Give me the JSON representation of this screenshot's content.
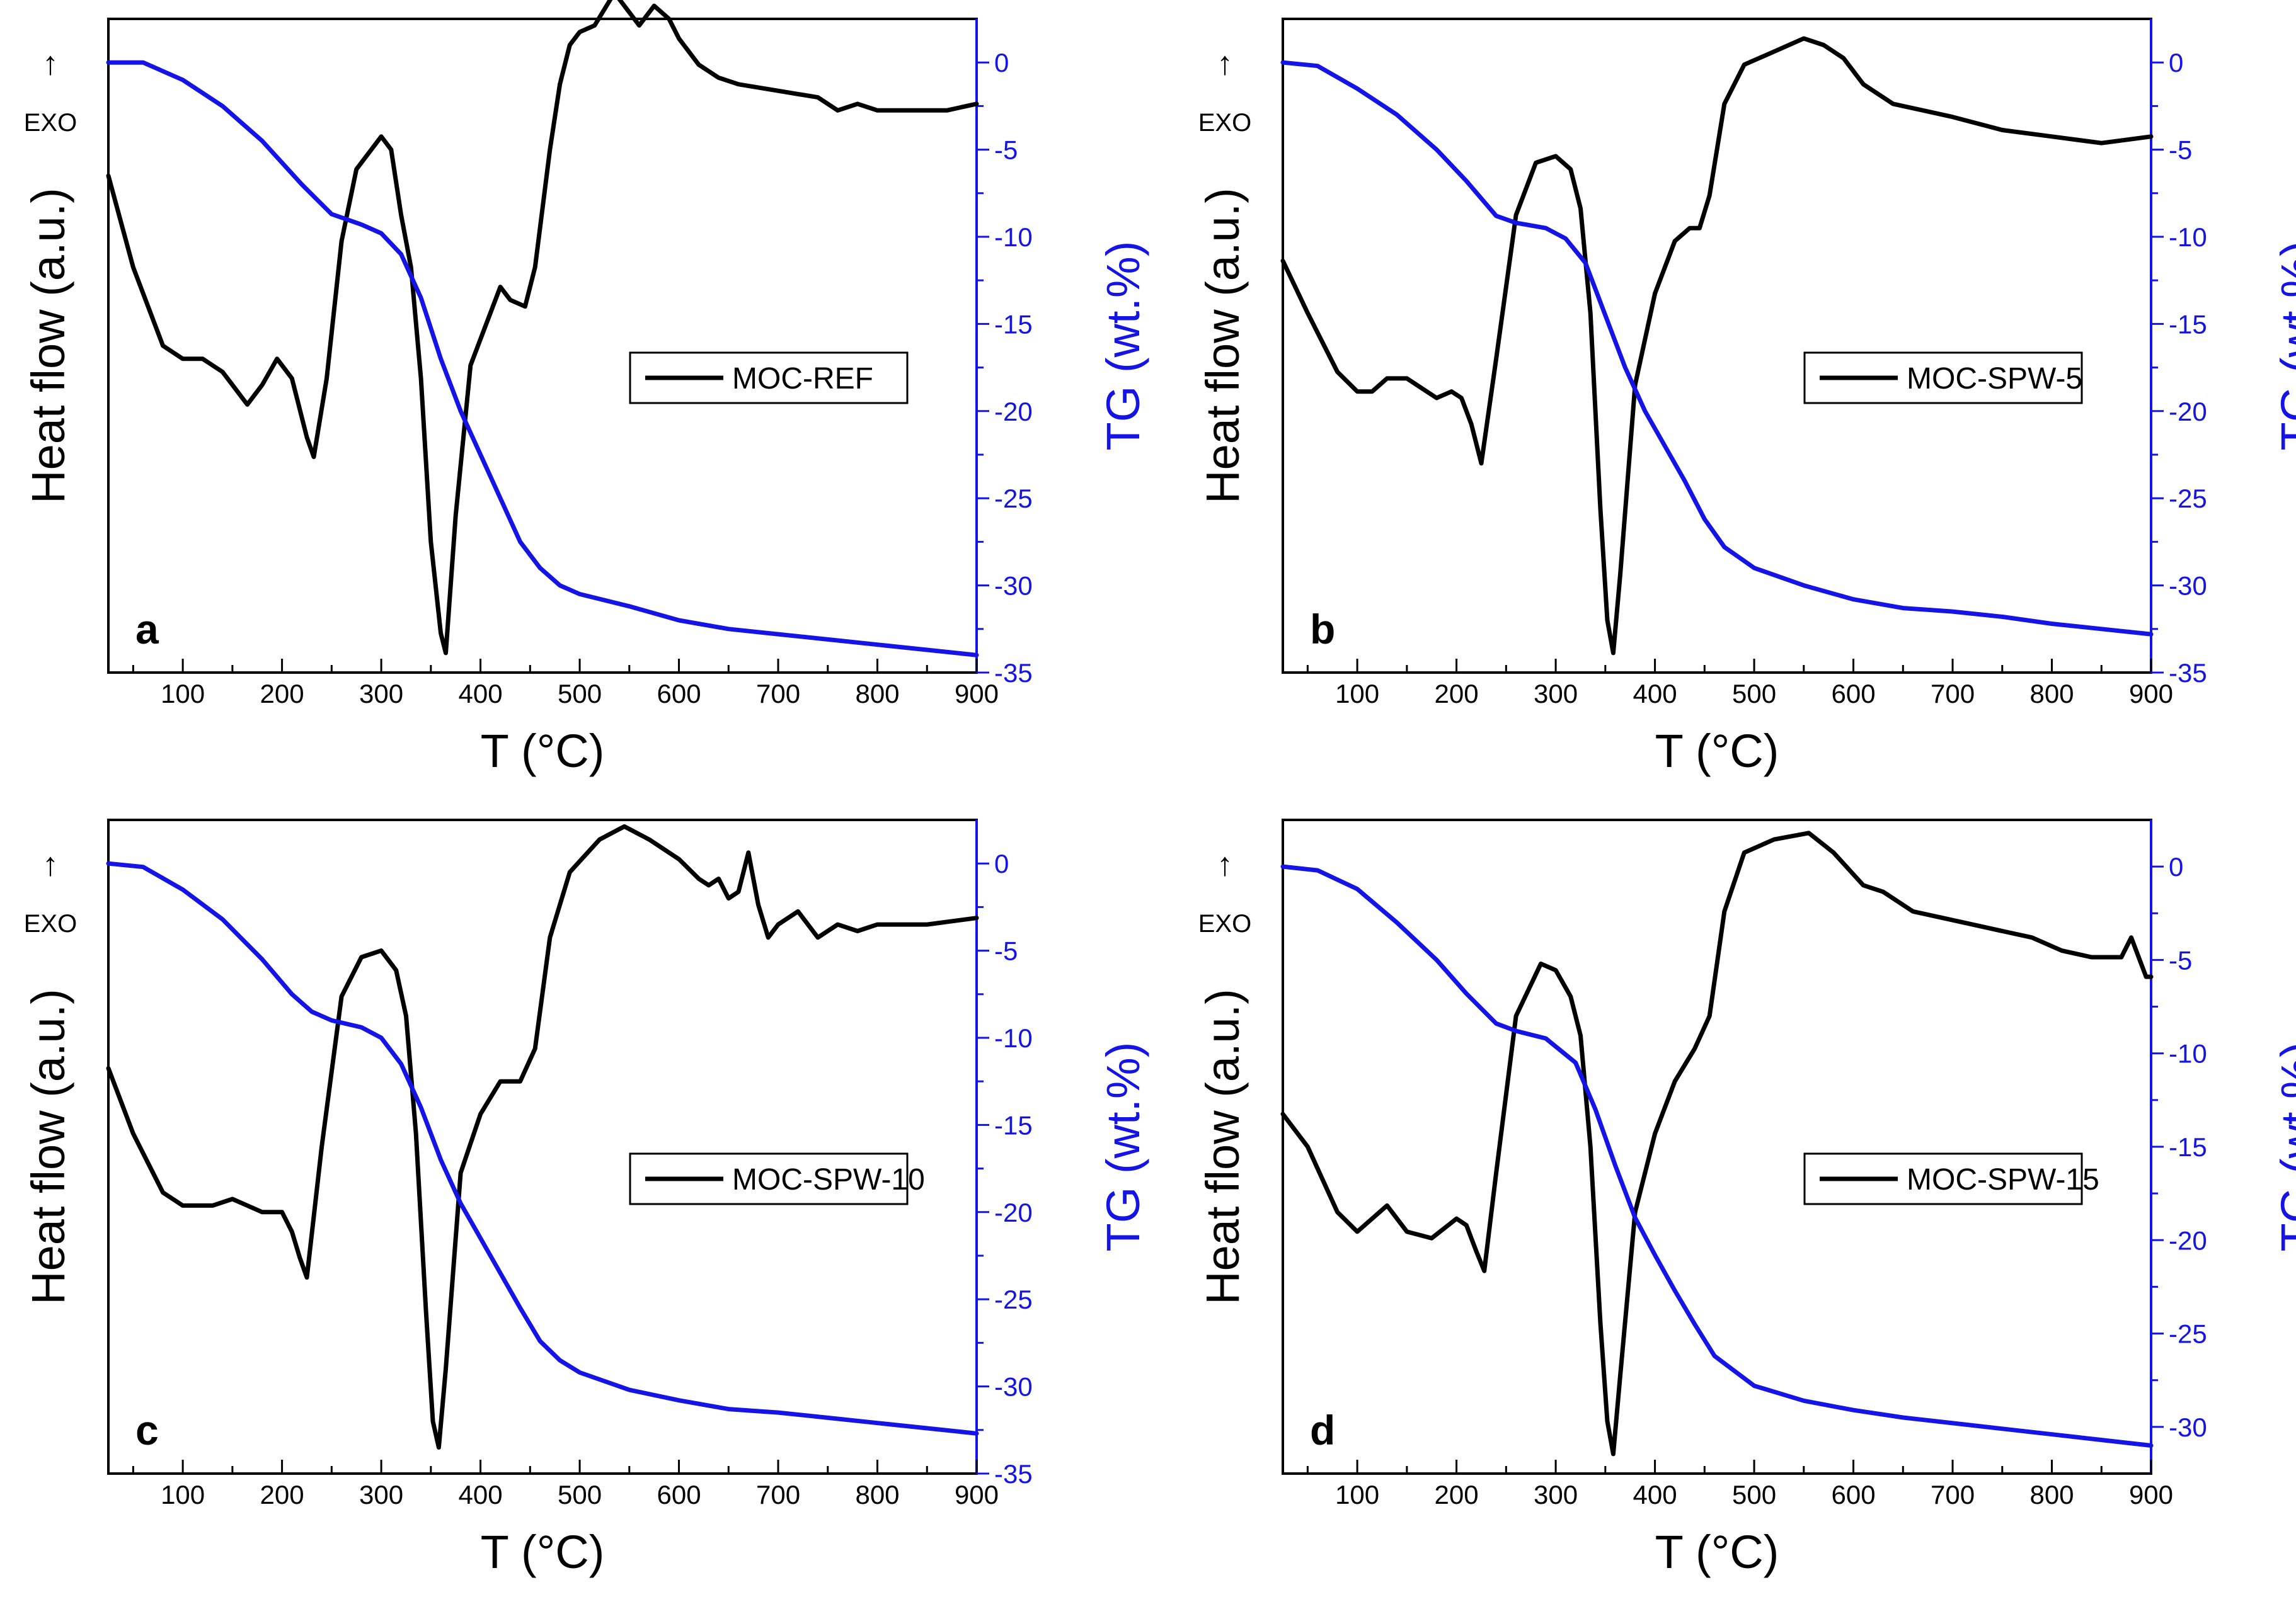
{
  "figure": {
    "x_axis_label": "T (°C)",
    "y_left_label": "Heat flow (a.u.)",
    "y_right_label": "TG (wt.%)",
    "exo_arrow_glyph": "↑",
    "exo_label": "EXO",
    "colors": {
      "dsc": "#000000",
      "tg": "#1414e6",
      "axis_left": "#000000",
      "axis_right": "#1414e6"
    }
  },
  "chart_data": [
    {
      "type": "line",
      "panel_letter": "a",
      "legend": "MOC-REF",
      "legend_position": "center-right",
      "xlabel": "T (°C)",
      "ylabel_left": "Heat flow (a.u.)",
      "ylabel_right": "TG (wt.%)",
      "xlim": [
        25,
        900
      ],
      "x_ticks": [
        100,
        200,
        300,
        400,
        500,
        600,
        700,
        800,
        900
      ],
      "tg_ylim": [
        -35,
        2.5
      ],
      "tg_ticks": [
        0,
        -5,
        -10,
        -15,
        -20,
        -25,
        -30,
        -35
      ],
      "dsc_ylim": [
        0,
        100
      ],
      "series": [
        {
          "name": "MOC-REF",
          "axis": "left",
          "x": [
            25,
            50,
            80,
            100,
            120,
            140,
            150,
            165,
            180,
            195,
            210,
            225,
            232,
            245,
            260,
            275,
            290,
            300,
            310,
            320,
            330,
            340,
            350,
            360,
            365,
            375,
            390,
            410,
            420,
            430,
            445,
            455,
            470,
            480,
            490,
            500,
            515,
            535,
            550,
            560,
            575,
            590,
            600,
            620,
            640,
            660,
            700,
            740,
            760,
            780,
            800,
            840,
            870,
            900
          ],
          "values": [
            76,
            62,
            50,
            48,
            48,
            46,
            44,
            41,
            44,
            48,
            45,
            36,
            33,
            45,
            66,
            77,
            80,
            82,
            80,
            70,
            62,
            45,
            20,
            6,
            3,
            24,
            47,
            55,
            59,
            57,
            56,
            62,
            80,
            90,
            96,
            98,
            99,
            104,
            101,
            99,
            102,
            100,
            97,
            93,
            91,
            90,
            89,
            88,
            86,
            87,
            86,
            86,
            86,
            87
          ]
        },
        {
          "name": "TG",
          "axis": "right",
          "x": [
            25,
            60,
            100,
            140,
            180,
            220,
            250,
            280,
            300,
            320,
            340,
            360,
            380,
            400,
            420,
            440,
            460,
            480,
            500,
            550,
            600,
            650,
            700,
            750,
            800,
            850,
            900
          ],
          "values": [
            0,
            0,
            -1,
            -2.5,
            -4.5,
            -7,
            -8.7,
            -9.3,
            -9.8,
            -11,
            -13.5,
            -17,
            -20,
            -22.5,
            -25,
            -27.5,
            -29,
            -30,
            -30.5,
            -31.2,
            -32,
            -32.5,
            -32.8,
            -33.1,
            -33.4,
            -33.7,
            -34
          ]
        }
      ]
    },
    {
      "type": "line",
      "panel_letter": "b",
      "legend": "MOC-SPW-5",
      "legend_position": "center-right",
      "xlabel": "T (°C)",
      "ylabel_left": "Heat flow (a.u.)",
      "ylabel_right": "TG (wt.%)",
      "xlim": [
        25,
        900
      ],
      "x_ticks": [
        100,
        200,
        300,
        400,
        500,
        600,
        700,
        800,
        900
      ],
      "tg_ylim": [
        -35,
        2.5
      ],
      "tg_ticks": [
        0,
        -5,
        -10,
        -15,
        -20,
        -25,
        -30,
        -35
      ],
      "dsc_ylim": [
        0,
        100
      ],
      "series": [
        {
          "name": "MOC-SPW-5",
          "axis": "left",
          "x": [
            25,
            50,
            80,
            100,
            115,
            130,
            150,
            170,
            180,
            195,
            205,
            215,
            225,
            240,
            260,
            280,
            300,
            315,
            325,
            335,
            345,
            352,
            358,
            365,
            380,
            400,
            420,
            435,
            445,
            455,
            470,
            490,
            520,
            550,
            570,
            590,
            610,
            640,
            700,
            750,
            800,
            850,
            900
          ],
          "values": [
            63,
            55,
            46,
            43,
            43,
            45,
            45,
            43,
            42,
            43,
            42,
            38,
            32,
            48,
            70,
            78,
            79,
            77,
            71,
            55,
            25,
            8,
            3,
            15,
            44,
            58,
            66,
            68,
            68,
            73,
            87,
            93,
            95,
            97,
            96,
            94,
            90,
            87,
            85,
            83,
            82,
            81,
            82
          ]
        },
        {
          "name": "TG",
          "axis": "right",
          "x": [
            25,
            60,
            100,
            140,
            180,
            210,
            240,
            260,
            290,
            310,
            330,
            350,
            370,
            390,
            410,
            430,
            450,
            470,
            500,
            550,
            600,
            650,
            700,
            750,
            800,
            850,
            900
          ],
          "values": [
            0,
            -0.2,
            -1.5,
            -3,
            -5,
            -6.8,
            -8.8,
            -9.2,
            -9.5,
            -10.1,
            -11.5,
            -14.5,
            -17.5,
            -20,
            -22,
            -24,
            -26.2,
            -27.8,
            -29,
            -30,
            -30.8,
            -31.3,
            -31.5,
            -31.8,
            -32.2,
            -32.5,
            -32.8
          ]
        }
      ]
    },
    {
      "type": "line",
      "panel_letter": "c",
      "legend": "MOC-SPW-10",
      "legend_position": "center-right",
      "xlabel": "T (°C)",
      "ylabel_left": "Heat flow (a.u.)",
      "ylabel_right": "TG (wt.%)",
      "xlim": [
        25,
        900
      ],
      "x_ticks": [
        100,
        200,
        300,
        400,
        500,
        600,
        700,
        800,
        900
      ],
      "tg_ylim": [
        -35,
        2.5
      ],
      "tg_ticks": [
        0,
        -5,
        -10,
        -15,
        -20,
        -25,
        -30,
        -35
      ],
      "dsc_ylim": [
        0,
        100
      ],
      "series": [
        {
          "name": "MOC-SPW-10",
          "axis": "left",
          "x": [
            25,
            50,
            80,
            100,
            130,
            150,
            180,
            200,
            210,
            218,
            225,
            240,
            260,
            280,
            300,
            315,
            325,
            335,
            345,
            352,
            358,
            365,
            380,
            400,
            420,
            440,
            455,
            470,
            490,
            520,
            545,
            570,
            600,
            620,
            630,
            640,
            650,
            660,
            670,
            680,
            690,
            700,
            720,
            740,
            760,
            780,
            800,
            850,
            900
          ],
          "values": [
            62,
            52,
            43,
            41,
            41,
            42,
            40,
            40,
            37,
            33,
            30,
            50,
            73,
            79,
            80,
            77,
            70,
            52,
            25,
            8,
            4,
            16,
            46,
            55,
            60,
            60,
            65,
            82,
            92,
            97,
            99,
            97,
            94,
            91,
            90,
            91,
            88,
            89,
            95,
            87,
            82,
            84,
            86,
            82,
            84,
            83,
            84,
            84,
            85
          ]
        },
        {
          "name": "TG",
          "axis": "right",
          "x": [
            25,
            60,
            100,
            140,
            180,
            210,
            230,
            250,
            280,
            300,
            320,
            340,
            360,
            380,
            400,
            420,
            440,
            460,
            480,
            500,
            550,
            600,
            650,
            700,
            750,
            800,
            850,
            900
          ],
          "values": [
            0,
            -0.2,
            -1.5,
            -3.2,
            -5.5,
            -7.5,
            -8.5,
            -9,
            -9.4,
            -10,
            -11.5,
            -14,
            -17,
            -19.5,
            -21.5,
            -23.5,
            -25.5,
            -27.4,
            -28.5,
            -29.2,
            -30.2,
            -30.8,
            -31.3,
            -31.5,
            -31.8,
            -32.1,
            -32.4,
            -32.7
          ]
        }
      ]
    },
    {
      "type": "line",
      "panel_letter": "d",
      "legend": "MOC-SPW-15",
      "legend_position": "center-right",
      "xlabel": "T (°C)",
      "ylabel_left": "Heat flow (a.u.)",
      "ylabel_right": "TG (wt.%)",
      "xlim": [
        25,
        900
      ],
      "x_ticks": [
        100,
        200,
        300,
        400,
        500,
        600,
        700,
        800,
        900
      ],
      "tg_ylim": [
        -32.5,
        2.5
      ],
      "tg_ticks": [
        0,
        -5,
        -10,
        -15,
        -20,
        -25,
        -30
      ],
      "dsc_ylim": [
        0,
        100
      ],
      "series": [
        {
          "name": "MOC-SPW-15",
          "axis": "left",
          "x": [
            25,
            50,
            80,
            100,
            130,
            150,
            175,
            200,
            210,
            220,
            228,
            240,
            260,
            285,
            300,
            315,
            325,
            335,
            345,
            352,
            358,
            365,
            380,
            400,
            420,
            440,
            455,
            470,
            490,
            520,
            555,
            580,
            610,
            630,
            660,
            690,
            720,
            750,
            780,
            810,
            840,
            870,
            880,
            895,
            900
          ],
          "values": [
            55,
            50,
            40,
            37,
            41,
            37,
            36,
            39,
            38,
            34,
            31,
            46,
            70,
            78,
            77,
            73,
            67,
            50,
            23,
            8,
            3,
            15,
            40,
            52,
            60,
            65,
            70,
            86,
            95,
            97,
            98,
            95,
            90,
            89,
            86,
            85,
            84,
            83,
            82,
            80,
            79,
            79,
            82,
            76,
            76
          ]
        },
        {
          "name": "TG",
          "axis": "right",
          "x": [
            25,
            60,
            100,
            140,
            180,
            210,
            240,
            260,
            290,
            320,
            340,
            360,
            380,
            400,
            420,
            440,
            460,
            480,
            500,
            550,
            600,
            650,
            700,
            750,
            800,
            850,
            900
          ],
          "values": [
            0,
            -0.2,
            -1.2,
            -3,
            -5,
            -6.8,
            -8.4,
            -8.8,
            -9.2,
            -10.5,
            -13,
            -16,
            -18.8,
            -20.8,
            -22.7,
            -24.5,
            -26.2,
            -27,
            -27.8,
            -28.6,
            -29.1,
            -29.5,
            -29.8,
            -30.1,
            -30.4,
            -30.7,
            -31
          ]
        }
      ]
    }
  ]
}
